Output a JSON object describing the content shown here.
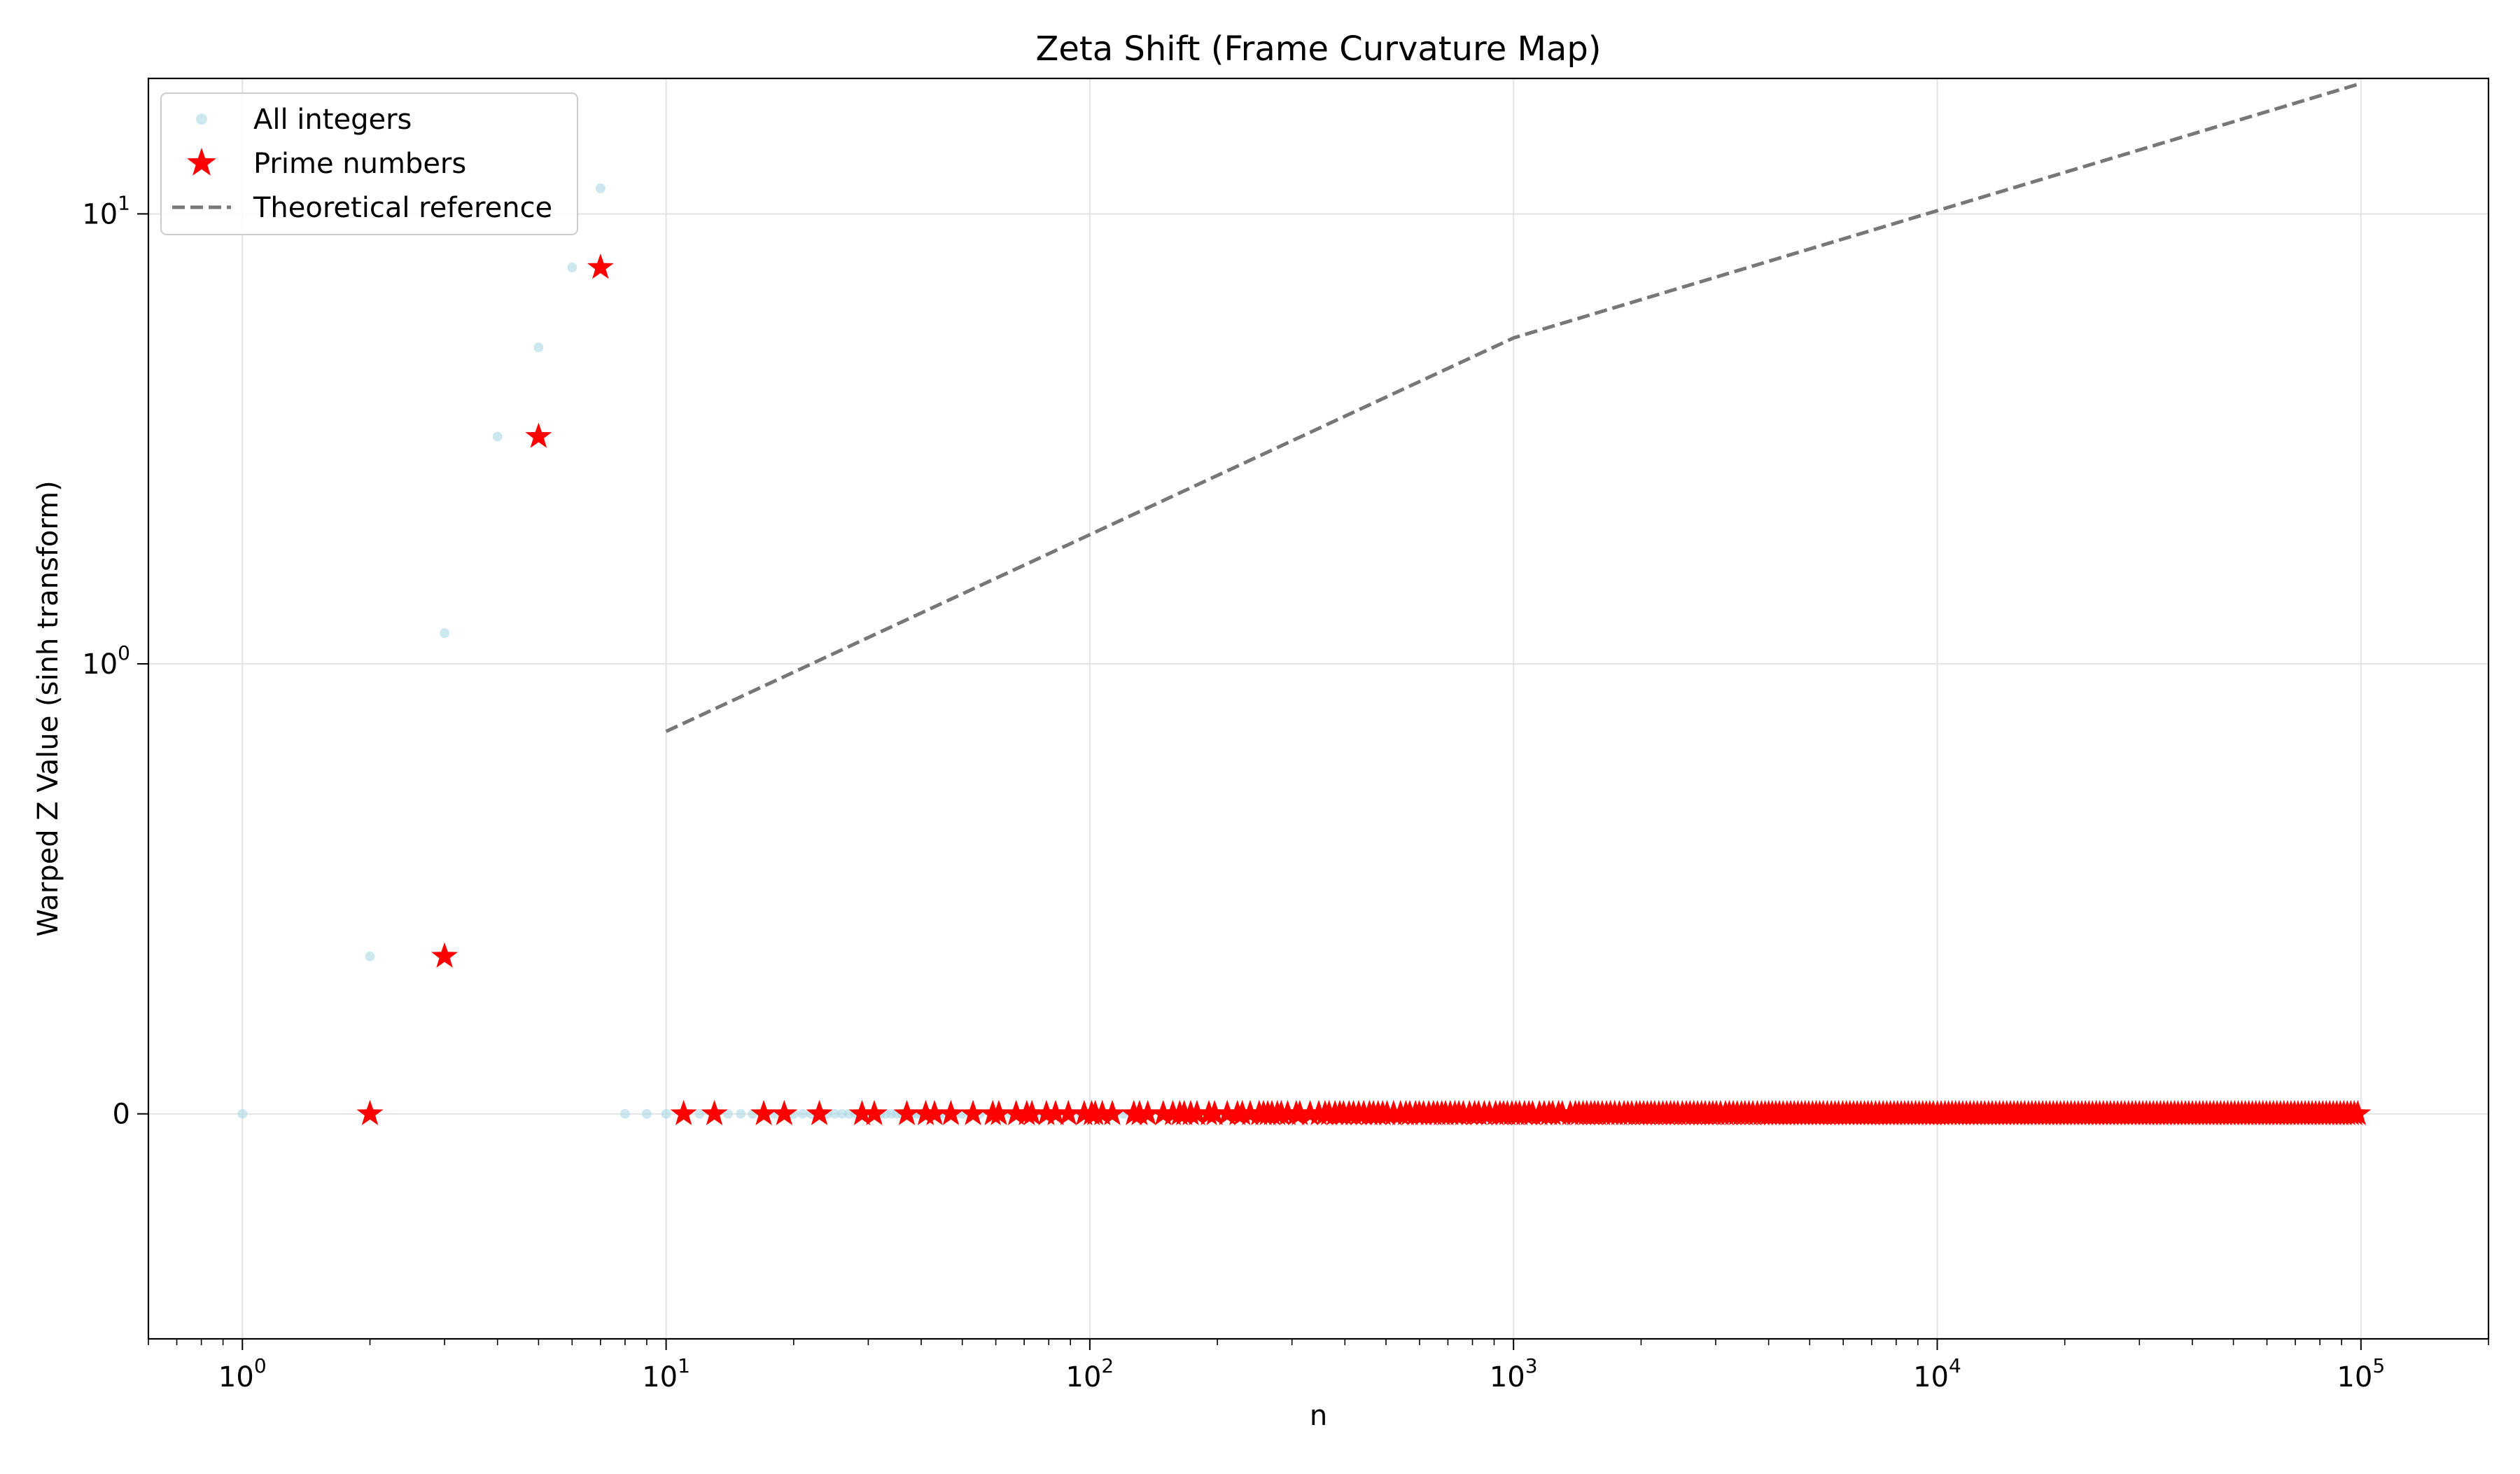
{
  "chart_data": {
    "type": "scatter",
    "title": "Zeta Shift (Frame Curvature Map)",
    "xlabel": "n",
    "ylabel": "Warped Z Value (sinh transform)",
    "xscale": "log",
    "yscale": "symlog",
    "xlim": [
      0.6,
      200000
    ],
    "ylim": [
      -0.5,
      20
    ],
    "grid": true,
    "legend_placement": "top-left",
    "x_ticks": [
      {
        "value": 1,
        "base": "10",
        "exp": "0"
      },
      {
        "value": 10,
        "base": "10",
        "exp": "1"
      },
      {
        "value": 100,
        "base": "10",
        "exp": "2"
      },
      {
        "value": 1000,
        "base": "10",
        "exp": "3"
      },
      {
        "value": 10000,
        "base": "10",
        "exp": "4"
      },
      {
        "value": 100000,
        "base": "10",
        "exp": "5"
      }
    ],
    "y_ticks": [
      {
        "value": 0,
        "base": "0",
        "exp": ""
      },
      {
        "value": 1,
        "base": "10",
        "exp": "0"
      },
      {
        "value": 10,
        "base": "10",
        "exp": "1"
      }
    ],
    "series": [
      {
        "name": "All integers",
        "kind": "scatter",
        "marker": "circle",
        "color": "#add8e6",
        "points": [
          [
            1,
            0
          ],
          [
            2,
            0.35
          ],
          [
            3,
            1.17
          ],
          [
            4,
            3.2
          ],
          [
            5,
            5.05
          ],
          [
            6,
            7.6
          ],
          [
            7,
            11.4
          ],
          [
            8,
            0
          ],
          [
            9,
            0
          ],
          [
            10,
            0
          ],
          [
            12,
            0
          ],
          [
            14,
            0
          ],
          [
            15,
            0
          ],
          [
            16,
            0
          ],
          [
            18,
            0
          ],
          [
            20,
            0
          ],
          [
            21,
            0
          ],
          [
            22,
            0
          ],
          [
            24,
            0
          ],
          [
            25,
            0
          ],
          [
            26,
            0
          ],
          [
            27,
            0
          ],
          [
            28,
            0
          ],
          [
            32,
            0
          ],
          [
            33,
            0
          ],
          [
            34,
            0
          ],
          [
            35,
            0
          ],
          [
            36,
            0
          ],
          [
            38,
            0
          ],
          [
            39,
            0
          ],
          [
            40,
            0
          ],
          [
            44,
            0
          ],
          [
            45,
            0
          ],
          [
            48,
            0
          ],
          [
            50,
            0
          ],
          [
            55,
            0
          ],
          [
            60,
            0
          ],
          [
            65,
            0
          ],
          [
            70,
            0
          ],
          [
            75,
            0
          ],
          [
            80,
            0
          ],
          [
            85,
            0
          ],
          [
            90,
            0
          ],
          [
            95,
            0
          ],
          [
            100,
            0
          ],
          [
            110,
            0
          ],
          [
            120,
            0
          ]
        ]
      },
      {
        "name": "Prime numbers",
        "kind": "scatter",
        "marker": "star",
        "color": "#ff0000",
        "points": [
          [
            2,
            0
          ],
          [
            3,
            0.35
          ],
          [
            5,
            3.2
          ],
          [
            7,
            7.6
          ]
        ],
        "zero_primes_from": 11,
        "zero_primes_to": 100000
      },
      {
        "name": "Theoretical reference",
        "kind": "line",
        "style": "dashed",
        "color": "#777777",
        "points": [
          [
            10,
            0.85
          ],
          [
            1000,
            5.3
          ],
          [
            100000,
            19.5
          ]
        ]
      }
    ]
  }
}
